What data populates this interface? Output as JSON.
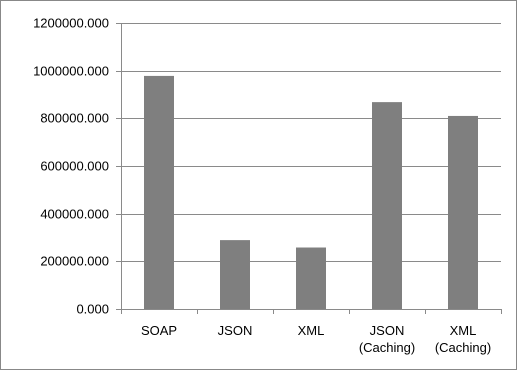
{
  "chart_data": {
    "type": "bar",
    "categories": [
      [
        "SOAP"
      ],
      [
        "JSON"
      ],
      [
        "XML"
      ],
      [
        "JSON",
        "(Caching)"
      ],
      [
        "XML",
        "(Caching)"
      ]
    ],
    "values": [
      978000,
      289000,
      258000,
      868000,
      810000
    ],
    "ylim": [
      0,
      1200000
    ],
    "yticks": [
      0,
      200000,
      400000,
      600000,
      800000,
      1000000,
      1200000
    ],
    "ytick_labels": [
      "0.000",
      "200000.000",
      "400000.000",
      "600000.000",
      "800000.000",
      "1000000.000",
      "1200000.000"
    ],
    "grid": true,
    "legend": "none",
    "bar_color": "#7f7f7f",
    "grid_color": "#8a8a8a"
  }
}
